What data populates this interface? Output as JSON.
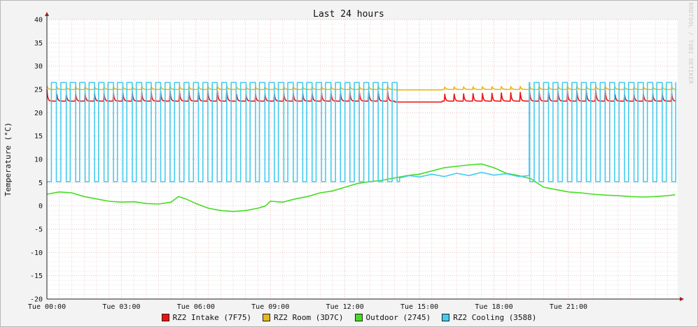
{
  "chart_data": {
    "type": "line",
    "title": "Last 24 hours",
    "ylabel": "Temperature (°C)",
    "xlabel": "",
    "watermark": "RRDTOOL / TOBI OETIKER",
    "ylim": [
      -20,
      40
    ],
    "xlim": [
      0,
      25.4
    ],
    "y_ticks": [
      -20,
      -15,
      -10,
      -5,
      0,
      5,
      10,
      15,
      20,
      25,
      30,
      35,
      40
    ],
    "x_tick_labels": [
      "Tue 00:00",
      "Tue 03:00",
      "Tue 06:00",
      "Tue 09:00",
      "Tue 12:00",
      "Tue 15:00",
      "Tue 18:00",
      "Tue 21:00"
    ],
    "x_tick_hours": [
      0,
      3,
      6,
      9,
      12,
      15,
      18,
      21
    ],
    "grid": true,
    "legend_position": "bottom",
    "series": [
      {
        "name": "RZ2 Intake (7F75)",
        "color": "#ee1111",
        "cycle": {
          "period_h": 0.381,
          "start_h": 0.0,
          "base": 22.5,
          "peak": 25.0,
          "decay": 0.09
        },
        "gaps": [
          [
            14.0,
            15.9
          ]
        ],
        "gap_level": 22.3
      },
      {
        "name": "RZ2 Room (3D7C)",
        "color": "#e8b818",
        "cycle": {
          "period_h": 0.381,
          "start_h": 0.0,
          "base": 25.0,
          "peak": 25.8,
          "decay": 0.12
        },
        "gaps": [
          [
            14.0,
            15.9
          ]
        ],
        "gap_level": 24.9
      },
      {
        "name": "Outdoor (2745)",
        "color": "#44dd22",
        "points": [
          [
            0,
            2.5
          ],
          [
            0.5,
            3
          ],
          [
            1,
            2.8
          ],
          [
            1.5,
            2
          ],
          [
            2,
            1.5
          ],
          [
            2.5,
            1
          ],
          [
            3,
            0.8
          ],
          [
            3.5,
            0.9
          ],
          [
            4,
            0.5
          ],
          [
            4.5,
            0.4
          ],
          [
            5,
            0.8
          ],
          [
            5.3,
            2
          ],
          [
            5.6,
            1.5
          ],
          [
            6,
            0.5
          ],
          [
            6.5,
            -0.5
          ],
          [
            7,
            -1
          ],
          [
            7.5,
            -1.2
          ],
          [
            8,
            -1
          ],
          [
            8.5,
            -0.5
          ],
          [
            8.8,
            0
          ],
          [
            9,
            1
          ],
          [
            9.5,
            0.8
          ],
          [
            10,
            1.5
          ],
          [
            10.5,
            2
          ],
          [
            11,
            2.8
          ],
          [
            11.5,
            3.2
          ],
          [
            12,
            4
          ],
          [
            12.5,
            4.8
          ],
          [
            13,
            5.2
          ],
          [
            13.5,
            5.5
          ],
          [
            14,
            6
          ],
          [
            14.5,
            6.5
          ],
          [
            15,
            6.8
          ],
          [
            15.5,
            7.5
          ],
          [
            16,
            8.2
          ],
          [
            16.5,
            8.5
          ],
          [
            17,
            8.8
          ],
          [
            17.5,
            9
          ],
          [
            18,
            8.2
          ],
          [
            18.5,
            7
          ],
          [
            19,
            6.5
          ],
          [
            19.5,
            5.8
          ],
          [
            20,
            4
          ],
          [
            20.5,
            3.5
          ],
          [
            21,
            3
          ],
          [
            21.5,
            2.8
          ],
          [
            22,
            2.5
          ],
          [
            22.5,
            2.3
          ],
          [
            23,
            2.2
          ],
          [
            23.5,
            2.0
          ],
          [
            24,
            1.9
          ],
          [
            24.5,
            2.0
          ],
          [
            25,
            2.2
          ],
          [
            25.3,
            2.4
          ]
        ]
      },
      {
        "name": "RZ2 Cooling (3588)",
        "color": "#44ccee",
        "cycle": {
          "period_h": 0.381,
          "start_h": 0.38,
          "low": 5.2,
          "high": 26.5,
          "on_frac": 0.45
        },
        "gaps": [
          [
            14.2,
            19.4
          ]
        ],
        "gap_points": [
          [
            14.2,
            6
          ],
          [
            14.6,
            6.5
          ],
          [
            15.0,
            6.2
          ],
          [
            15.5,
            6.8
          ],
          [
            16.0,
            6.3
          ],
          [
            16.5,
            7.0
          ],
          [
            17.0,
            6.5
          ],
          [
            17.5,
            7.2
          ],
          [
            18.0,
            6.6
          ],
          [
            18.5,
            6.9
          ],
          [
            19.0,
            6.3
          ],
          [
            19.4,
            6.5
          ]
        ]
      }
    ]
  }
}
